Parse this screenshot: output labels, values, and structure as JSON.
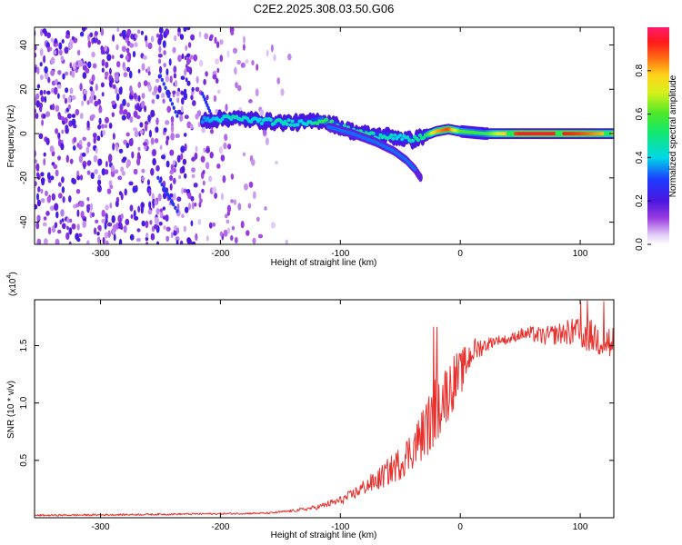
{
  "title": "C2E2.2025.308.03.50.G06",
  "colors": {
    "snr_line": "#e8312d",
    "frame": "#000000",
    "spectrogram_bg": "#ffffff"
  },
  "chart_data": [
    {
      "type": "heatmap",
      "name": "spectrogram",
      "xlabel": "Height of straight line (km)",
      "ylabel": "Frequency (Hz)",
      "xlim": [
        -355,
        128
      ],
      "ylim": [
        -50,
        48
      ],
      "xticks": [
        -300,
        -200,
        -100,
        0,
        100
      ],
      "xtick_labels": [
        "-300",
        "-200",
        "-100",
        "0",
        "100"
      ],
      "yticks": [
        -40,
        -20,
        0,
        20,
        40
      ],
      "ytick_labels": [
        "-40",
        "-20",
        "0",
        "20",
        "40"
      ],
      "colorbar": {
        "label": "Normalized spectral amplitude",
        "range": [
          0.0,
          1.0
        ],
        "ticks": [
          0.0,
          0.2,
          0.4,
          0.6,
          0.8
        ],
        "tick_labels": [
          "0.0",
          "0.2",
          "0.4",
          "0.6",
          "0.8"
        ],
        "colormap": "rainbow"
      },
      "signal_trace": {
        "description": "main Doppler ridge",
        "x": [
          -215,
          -190,
          -170,
          -150,
          -130,
          -115,
          -100,
          -90,
          -80,
          -70,
          -60,
          -50,
          -40,
          -30,
          -20,
          -10,
          0,
          20,
          50,
          80,
          100,
          128
        ],
        "y": [
          6,
          7,
          6,
          5,
          5,
          6,
          3,
          1,
          0,
          -1,
          -1,
          -2,
          -3,
          -1,
          1,
          2,
          1,
          0,
          0,
          0,
          0,
          0
        ],
        "amplitude": [
          0.35,
          0.45,
          0.4,
          0.45,
          0.4,
          0.55,
          0.5,
          0.45,
          0.5,
          0.45,
          0.45,
          0.4,
          0.45,
          0.5,
          0.8,
          0.9,
          0.6,
          0.55,
          0.95,
          0.95,
          0.9,
          0.75
        ]
      },
      "secondary_trace": {
        "description": "diverging lower branch",
        "x": [
          -110,
          -90,
          -70,
          -55,
          -45,
          -38,
          -33
        ],
        "y": [
          3,
          0,
          -4,
          -8,
          -12,
          -16,
          -20
        ]
      },
      "noise_region": {
        "description": "broadband noise, dense to about -220 km, sparse to about -140 km",
        "x_dense": [
          -355,
          -220
        ],
        "x_sparse": [
          -220,
          -140
        ]
      }
    },
    {
      "type": "line",
      "name": "snr",
      "xlabel": "Height of straight line (km)",
      "ylabel": "SNR (10 * v/v)",
      "scale_label": "(x10",
      "scale_exponent": "4",
      "scale_close": ")",
      "xlim": [
        -355,
        128
      ],
      "ylim": [
        0,
        19000
      ],
      "xticks": [
        -300,
        -200,
        -100,
        0,
        100
      ],
      "xtick_labels": [
        "-300",
        "-200",
        "-100",
        "0",
        "100"
      ],
      "yticks": [
        5000,
        10000,
        15000
      ],
      "ytick_labels": [
        "0.5",
        "1.0",
        "1.5"
      ],
      "series": [
        {
          "name": "SNR",
          "x": [
            -355,
            -300,
            -250,
            -200,
            -160,
            -140,
            -120,
            -100,
            -90,
            -80,
            -70,
            -60,
            -50,
            -40,
            -30,
            -25,
            -22,
            -20,
            -15,
            -10,
            -5,
            0,
            10,
            20,
            30,
            40,
            50,
            60,
            70,
            80,
            90,
            100,
            110,
            120,
            128
          ],
          "y": [
            200,
            250,
            300,
            350,
            400,
            600,
            900,
            1500,
            2000,
            2700,
            3200,
            4000,
            4800,
            6000,
            7500,
            8500,
            9500,
            9000,
            10500,
            11000,
            12000,
            12500,
            14500,
            15000,
            15500,
            15500,
            16000,
            16000,
            15800,
            16000,
            16200,
            16000,
            15800,
            15500,
            15000
          ],
          "noise_amplitude": [
            80,
            80,
            80,
            80,
            80,
            120,
            200,
            400,
            500,
            700,
            900,
            1200,
            1500,
            1800,
            2400,
            2800,
            3200,
            3000,
            2600,
            2600,
            2400,
            2000,
            1200,
            700,
            400,
            400,
            500,
            700,
            800,
            900,
            1100,
            1400,
            1500,
            1700,
            1900
          ]
        }
      ]
    }
  ]
}
